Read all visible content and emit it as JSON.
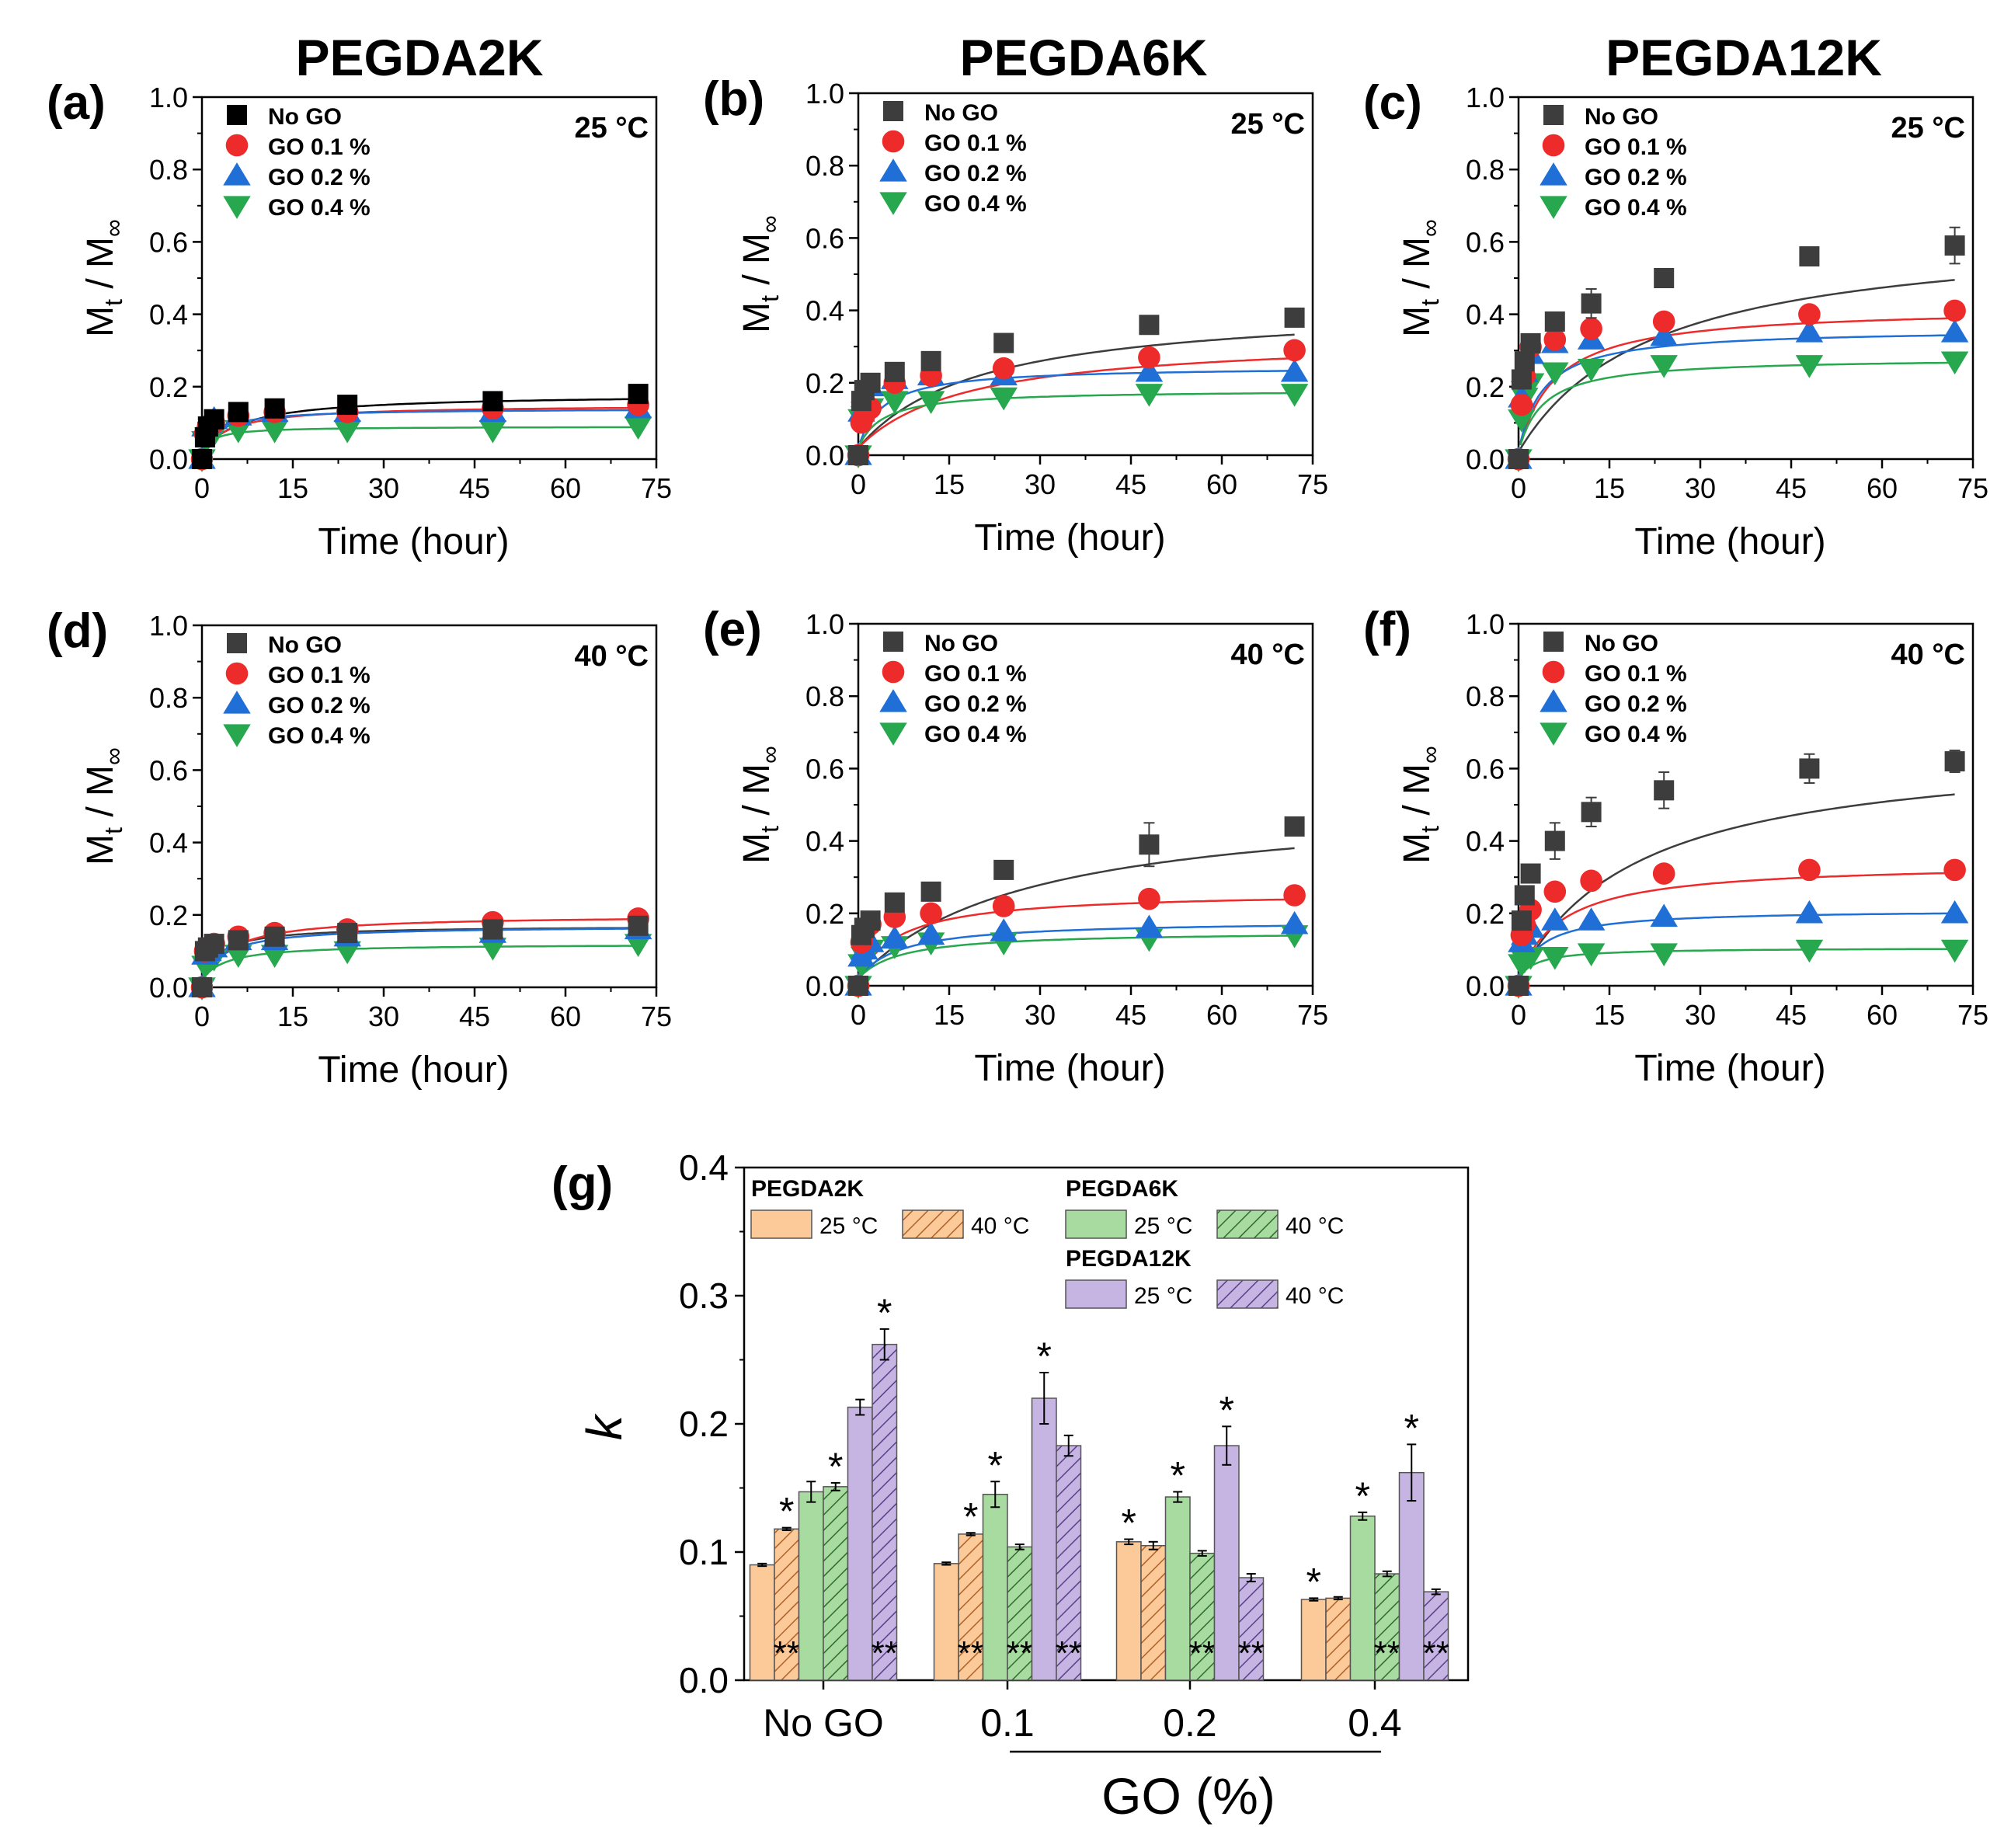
{
  "figure": {
    "column_titles": [
      "PEGDA2K",
      "PEGDA6K",
      "PEGDA12K"
    ],
    "colors": {
      "no_go_a": "#000000",
      "no_go": "#3d3d3d",
      "go01": "#ee2b2b",
      "go02": "#1f6fd6",
      "go04": "#27a84f",
      "pegda2k": "#fcc998",
      "pegda6k": "#a8dba0",
      "pegda12k": "#c6b4e2",
      "axis": "#000000"
    }
  },
  "chart_data": [
    {
      "type": "scatter",
      "panel": "(a)",
      "temperature": "25 °C",
      "xlabel": "Time (hour)",
      "ylabel": "Mt / M∞",
      "xlim": [
        0,
        75
      ],
      "ylim": [
        0,
        1.0
      ],
      "xticks": [
        "0",
        "15",
        "30",
        "45",
        "60",
        "75"
      ],
      "yticks": [
        "0.0",
        "0.2",
        "0.4",
        "0.6",
        "0.8",
        "1.0"
      ],
      "x": [
        0,
        0.5,
        1,
        2,
        6,
        12,
        24,
        48,
        72
      ],
      "series": [
        {
          "name": "No GO",
          "marker": "square",
          "color": "#000000",
          "values": [
            0,
            0.06,
            0.09,
            0.11,
            0.13,
            0.14,
            0.15,
            0.16,
            0.18
          ],
          "fit": [
            0.18,
            7
          ]
        },
        {
          "name": "GO 0.1 %",
          "marker": "circle",
          "color": "#ee2b2b",
          "values": [
            0,
            0.07,
            0.09,
            0.1,
            0.12,
            0.13,
            0.13,
            0.14,
            0.15
          ],
          "fit": [
            0.15,
            5
          ]
        },
        {
          "name": "GO 0.2 %",
          "marker": "triangle-up",
          "color": "#1f6fd6",
          "values": [
            0,
            0.09,
            0.1,
            0.11,
            0.12,
            0.13,
            0.13,
            0.13,
            0.14
          ],
          "fit": [
            0.14,
            3
          ]
        },
        {
          "name": "GO 0.4 %",
          "marker": "triangle-down",
          "color": "#27a84f",
          "values": [
            0,
            0.05,
            0.06,
            0.07,
            0.08,
            0.08,
            0.08,
            0.08,
            0.09
          ],
          "fit": [
            0.09,
            2
          ]
        }
      ]
    },
    {
      "type": "scatter",
      "panel": "(b)",
      "temperature": "25 °C",
      "xlabel": "Time (hour)",
      "ylabel": "Mt / M∞",
      "xlim": [
        0,
        75
      ],
      "ylim": [
        0,
        1.0
      ],
      "xticks": [
        "0",
        "15",
        "30",
        "45",
        "60",
        "75"
      ],
      "yticks": [
        "0.0",
        "0.2",
        "0.4",
        "0.6",
        "0.8",
        "1.0"
      ],
      "x": [
        0,
        0.5,
        1,
        2,
        6,
        12,
        24,
        48,
        72
      ],
      "series": [
        {
          "name": "No GO",
          "marker": "square",
          "color": "#3d3d3d",
          "values": [
            0,
            0.15,
            0.18,
            0.2,
            0.23,
            0.26,
            0.31,
            0.36,
            0.38
          ],
          "fit": [
            0.42,
            20
          ]
        },
        {
          "name": "GO 0.1 %",
          "marker": "circle",
          "color": "#ee2b2b",
          "values": [
            0,
            0.09,
            0.11,
            0.13,
            0.2,
            0.22,
            0.24,
            0.27,
            0.29
          ],
          "fit": [
            0.33,
            18
          ]
        },
        {
          "name": "GO 0.2 %",
          "marker": "triangle-up",
          "color": "#1f6fd6",
          "values": [
            0,
            0.12,
            0.16,
            0.19,
            0.21,
            0.22,
            0.22,
            0.23,
            0.23
          ],
          "fit": [
            0.245,
            4
          ]
        },
        {
          "name": "GO 0.4 %",
          "marker": "triangle-down",
          "color": "#27a84f",
          "values": [
            0,
            0.1,
            0.12,
            0.13,
            0.15,
            0.15,
            0.16,
            0.17,
            0.17
          ],
          "fit": [
            0.18,
            4
          ]
        }
      ]
    },
    {
      "type": "scatter",
      "panel": "(c)",
      "temperature": "25 °C",
      "xlabel": "Time (hour)",
      "ylabel": "Mt / M∞",
      "xlim": [
        0,
        75
      ],
      "ylim": [
        0,
        1.0
      ],
      "xticks": [
        "0",
        "15",
        "30",
        "45",
        "60",
        "75"
      ],
      "yticks": [
        "0.0",
        "0.2",
        "0.4",
        "0.6",
        "0.8",
        "1.0"
      ],
      "x": [
        0,
        0.5,
        1,
        2,
        6,
        12,
        24,
        48,
        72
      ],
      "series": [
        {
          "name": "No GO",
          "marker": "square",
          "color": "#3d3d3d",
          "values": [
            0,
            0.22,
            0.27,
            0.32,
            0.38,
            0.43,
            0.5,
            0.56,
            0.59
          ],
          "err": [
            0,
            0,
            0,
            0.01,
            0.02,
            0.04,
            0.02,
            0.02,
            0.05
          ],
          "fit": [
            0.64,
            22
          ]
        },
        {
          "name": "GO 0.1 %",
          "marker": "circle",
          "color": "#ee2b2b",
          "values": [
            0,
            0.15,
            0.23,
            0.31,
            0.33,
            0.36,
            0.38,
            0.4,
            0.41
          ],
          "fit": [
            0.42,
            6
          ]
        },
        {
          "name": "GO 0.2 %",
          "marker": "triangle-up",
          "color": "#1f6fd6",
          "values": [
            0,
            0.17,
            0.24,
            0.29,
            0.32,
            0.33,
            0.34,
            0.35,
            0.35
          ],
          "fit": [
            0.36,
            4
          ]
        },
        {
          "name": "GO 0.4 %",
          "marker": "triangle-down",
          "color": "#27a84f",
          "values": [
            0,
            0.11,
            0.17,
            0.21,
            0.24,
            0.25,
            0.26,
            0.26,
            0.27
          ],
          "fit": [
            0.28,
            4
          ]
        }
      ]
    },
    {
      "type": "scatter",
      "panel": "(d)",
      "temperature": "40 °C",
      "xlabel": "Time (hour)",
      "ylabel": "Mt / M∞",
      "xlim": [
        0,
        75
      ],
      "ylim": [
        0,
        1.0
      ],
      "xticks": [
        "0",
        "15",
        "30",
        "45",
        "60",
        "75"
      ],
      "yticks": [
        "0.0",
        "0.2",
        "0.4",
        "0.6",
        "0.8",
        "1.0"
      ],
      "x": [
        0,
        0.5,
        1,
        2,
        6,
        12,
        24,
        48,
        72
      ],
      "series": [
        {
          "name": "No GO",
          "marker": "square",
          "color": "#3d3d3d",
          "values": [
            0,
            0.1,
            0.11,
            0.12,
            0.13,
            0.14,
            0.15,
            0.16,
            0.17
          ],
          "fit": [
            0.17,
            3
          ]
        },
        {
          "name": "GO 0.1 %",
          "marker": "circle",
          "color": "#ee2b2b",
          "values": [
            0,
            0.1,
            0.11,
            0.12,
            0.14,
            0.15,
            0.16,
            0.18,
            0.19
          ],
          "fit": [
            0.2,
            5
          ]
        },
        {
          "name": "GO 0.2 %",
          "marker": "triangle-up",
          "color": "#1f6fd6",
          "values": [
            0,
            0.09,
            0.1,
            0.11,
            0.13,
            0.13,
            0.14,
            0.15,
            0.16
          ],
          "fit": [
            0.17,
            4
          ]
        },
        {
          "name": "GO 0.4 %",
          "marker": "triangle-down",
          "color": "#27a84f",
          "values": [
            0,
            0.06,
            0.07,
            0.08,
            0.09,
            0.09,
            0.1,
            0.11,
            0.12
          ],
          "fit": [
            0.12,
            4
          ]
        }
      ]
    },
    {
      "type": "scatter",
      "panel": "(e)",
      "temperature": "40 °C",
      "xlabel": "Time (hour)",
      "ylabel": "Mt / M∞",
      "xlim": [
        0,
        75
      ],
      "ylim": [
        0,
        1.0
      ],
      "xticks": [
        "0",
        "15",
        "30",
        "45",
        "60",
        "75"
      ],
      "yticks": [
        "0.0",
        "0.2",
        "0.4",
        "0.6",
        "0.8",
        "1.0"
      ],
      "x": [
        0,
        0.5,
        1,
        2,
        6,
        12,
        24,
        48,
        72
      ],
      "series": [
        {
          "name": "No GO",
          "marker": "square",
          "color": "#3d3d3d",
          "values": [
            0,
            0.14,
            0.16,
            0.18,
            0.23,
            0.26,
            0.32,
            0.39,
            0.44
          ],
          "err": [
            0,
            0,
            0,
            0,
            0.01,
            0.02,
            0.02,
            0.06,
            0.02
          ],
          "fit": [
            0.52,
            28
          ]
        },
        {
          "name": "GO 0.1 %",
          "marker": "circle",
          "color": "#ee2b2b",
          "values": [
            0,
            0.12,
            0.15,
            0.17,
            0.19,
            0.2,
            0.22,
            0.24,
            0.25
          ],
          "fit": [
            0.26,
            7
          ]
        },
        {
          "name": "GO 0.2 %",
          "marker": "triangle-up",
          "color": "#1f6fd6",
          "values": [
            0,
            0.08,
            0.1,
            0.12,
            0.13,
            0.14,
            0.15,
            0.16,
            0.17
          ],
          "fit": [
            0.18,
            7
          ]
        },
        {
          "name": "GO 0.4 %",
          "marker": "triangle-down",
          "color": "#27a84f",
          "values": [
            0,
            0.06,
            0.08,
            0.1,
            0.11,
            0.12,
            0.12,
            0.13,
            0.14
          ],
          "fit": [
            0.15,
            7
          ]
        }
      ]
    },
    {
      "type": "scatter",
      "panel": "(f)",
      "temperature": "40 °C",
      "xlabel": "Time (hour)",
      "ylabel": "Mt / M∞",
      "xlim": [
        0,
        75
      ],
      "ylim": [
        0,
        1.0
      ],
      "xticks": [
        "0",
        "15",
        "30",
        "45",
        "60",
        "75"
      ],
      "yticks": [
        "0.0",
        "0.2",
        "0.4",
        "0.6",
        "0.8",
        "1.0"
      ],
      "x": [
        0,
        0.5,
        1,
        2,
        6,
        12,
        24,
        48,
        72
      ],
      "series": [
        {
          "name": "No GO",
          "marker": "square",
          "color": "#3d3d3d",
          "values": [
            0,
            0.18,
            0.25,
            0.31,
            0.4,
            0.48,
            0.54,
            0.6,
            0.62
          ],
          "err": [
            0,
            0,
            0,
            0.02,
            0.05,
            0.04,
            0.05,
            0.04,
            0.03
          ],
          "fit": [
            0.67,
            20
          ]
        },
        {
          "name": "GO 0.1 %",
          "marker": "circle",
          "color": "#ee2b2b",
          "values": [
            0,
            0.14,
            0.17,
            0.21,
            0.26,
            0.29,
            0.31,
            0.32,
            0.32
          ],
          "fit": [
            0.34,
            7
          ]
        },
        {
          "name": "GO 0.2 %",
          "marker": "triangle-up",
          "color": "#1f6fd6",
          "values": [
            0,
            0.12,
            0.14,
            0.16,
            0.18,
            0.18,
            0.19,
            0.2,
            0.2
          ],
          "fit": [
            0.21,
            4
          ]
        },
        {
          "name": "GO 0.4 %",
          "marker": "triangle-down",
          "color": "#27a84f",
          "values": [
            0,
            0.06,
            0.07,
            0.08,
            0.08,
            0.09,
            0.09,
            0.1,
            0.1
          ],
          "fit": [
            0.105,
            3
          ]
        }
      ]
    },
    {
      "type": "bar",
      "panel": "(g)",
      "xlabel": "GO (%)",
      "ylabel": "k",
      "ylim": [
        0,
        0.4
      ],
      "yticks": [
        "0.0",
        "0.1",
        "0.2",
        "0.3",
        "0.4"
      ],
      "categories": [
        "No GO",
        "0.1",
        "0.2",
        "0.4"
      ],
      "legend_groups": [
        "PEGDA2K",
        "PEGDA6K",
        "PEGDA12K"
      ],
      "series": [
        {
          "name": "PEGDA2K 25 °C",
          "label": "25 °C",
          "group": "PEGDA2K",
          "hatch": false,
          "color": "#fcc998",
          "values": [
            0.09,
            0.091,
            0.108,
            0.063
          ],
          "err": [
            0.001,
            0.001,
            0.002,
            0.001
          ],
          "sig_top": [
            "",
            "",
            "*",
            "*"
          ],
          "sig_bottom": [
            "",
            "",
            "",
            ""
          ]
        },
        {
          "name": "PEGDA2K 40 °C",
          "label": "40 °C",
          "group": "PEGDA2K",
          "hatch": true,
          "color": "#fcc998",
          "values": [
            0.118,
            0.114,
            0.105,
            0.064
          ],
          "err": [
            0.001,
            0.001,
            0.003,
            0.001
          ],
          "sig_top": [
            "*",
            "*",
            "",
            ""
          ],
          "sig_bottom": [
            "**",
            "**",
            "",
            ""
          ]
        },
        {
          "name": "PEGDA6K 25 °C",
          "label": "25 °C",
          "group": "PEGDA6K",
          "hatch": false,
          "color": "#a8dba0",
          "values": [
            0.147,
            0.145,
            0.143,
            0.128
          ],
          "err": [
            0.008,
            0.01,
            0.004,
            0.003
          ],
          "sig_top": [
            "",
            "*",
            "*",
            "*"
          ],
          "sig_bottom": [
            "",
            "",
            "",
            ""
          ]
        },
        {
          "name": "PEGDA6K 40 °C",
          "label": "40 °C",
          "group": "PEGDA6K",
          "hatch": true,
          "color": "#a8dba0",
          "values": [
            0.151,
            0.104,
            0.099,
            0.083
          ],
          "err": [
            0.003,
            0.002,
            0.002,
            0.002
          ],
          "sig_top": [
            "*",
            "",
            "",
            ""
          ],
          "sig_bottom": [
            "",
            "**",
            "**",
            "**"
          ]
        },
        {
          "name": "PEGDA12K 25 °C",
          "label": "25 °C",
          "group": "PEGDA12K",
          "hatch": false,
          "color": "#c6b4e2",
          "values": [
            0.213,
            0.22,
            0.183,
            0.162
          ],
          "err": [
            0.006,
            0.02,
            0.015,
            0.022
          ],
          "sig_top": [
            "",
            "*",
            "*",
            "*"
          ],
          "sig_bottom": [
            "",
            "",
            "",
            ""
          ]
        },
        {
          "name": "PEGDA12K 40 °C",
          "label": "40 °C",
          "group": "PEGDA12K",
          "hatch": true,
          "color": "#c6b4e2",
          "values": [
            0.262,
            0.183,
            0.08,
            0.069
          ],
          "err": [
            0.012,
            0.008,
            0.003,
            0.002
          ],
          "sig_top": [
            "*",
            "",
            "",
            ""
          ],
          "sig_bottom": [
            "**",
            "**",
            "**",
            "**"
          ]
        }
      ]
    }
  ]
}
